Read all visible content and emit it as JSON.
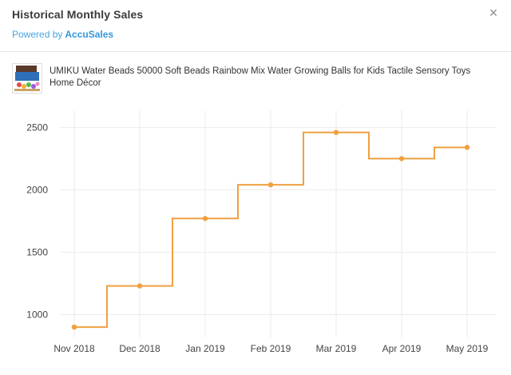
{
  "dialog": {
    "title": "Historical Monthly Sales",
    "powered_by_prefix": "Powered by",
    "powered_by_brand": "AccuSales",
    "close_glyph": "×"
  },
  "product": {
    "name": "UMIKU Water Beads 50000 Soft Beads Rainbow Mix Water Growing Balls for Kids Tactile Sensory Toys Home Décor"
  },
  "colors": {
    "line": "#f0a040",
    "brand": "#3498db",
    "grid": "#ebebeb"
  },
  "chart_data": {
    "type": "line",
    "step": "mid",
    "categories": [
      "Nov 2018",
      "Dec 2018",
      "Jan 2019",
      "Feb 2019",
      "Mar 2019",
      "Apr 2019",
      "May 2019"
    ],
    "series": [
      {
        "values": [
          900,
          1230,
          1770,
          2040,
          2460,
          2250,
          2340
        ]
      }
    ],
    "yticks": [
      1000,
      1500,
      2000,
      2500
    ],
    "ylim": [
      830,
      2560
    ],
    "xlabel": "",
    "ylabel": "",
    "grid": true
  }
}
